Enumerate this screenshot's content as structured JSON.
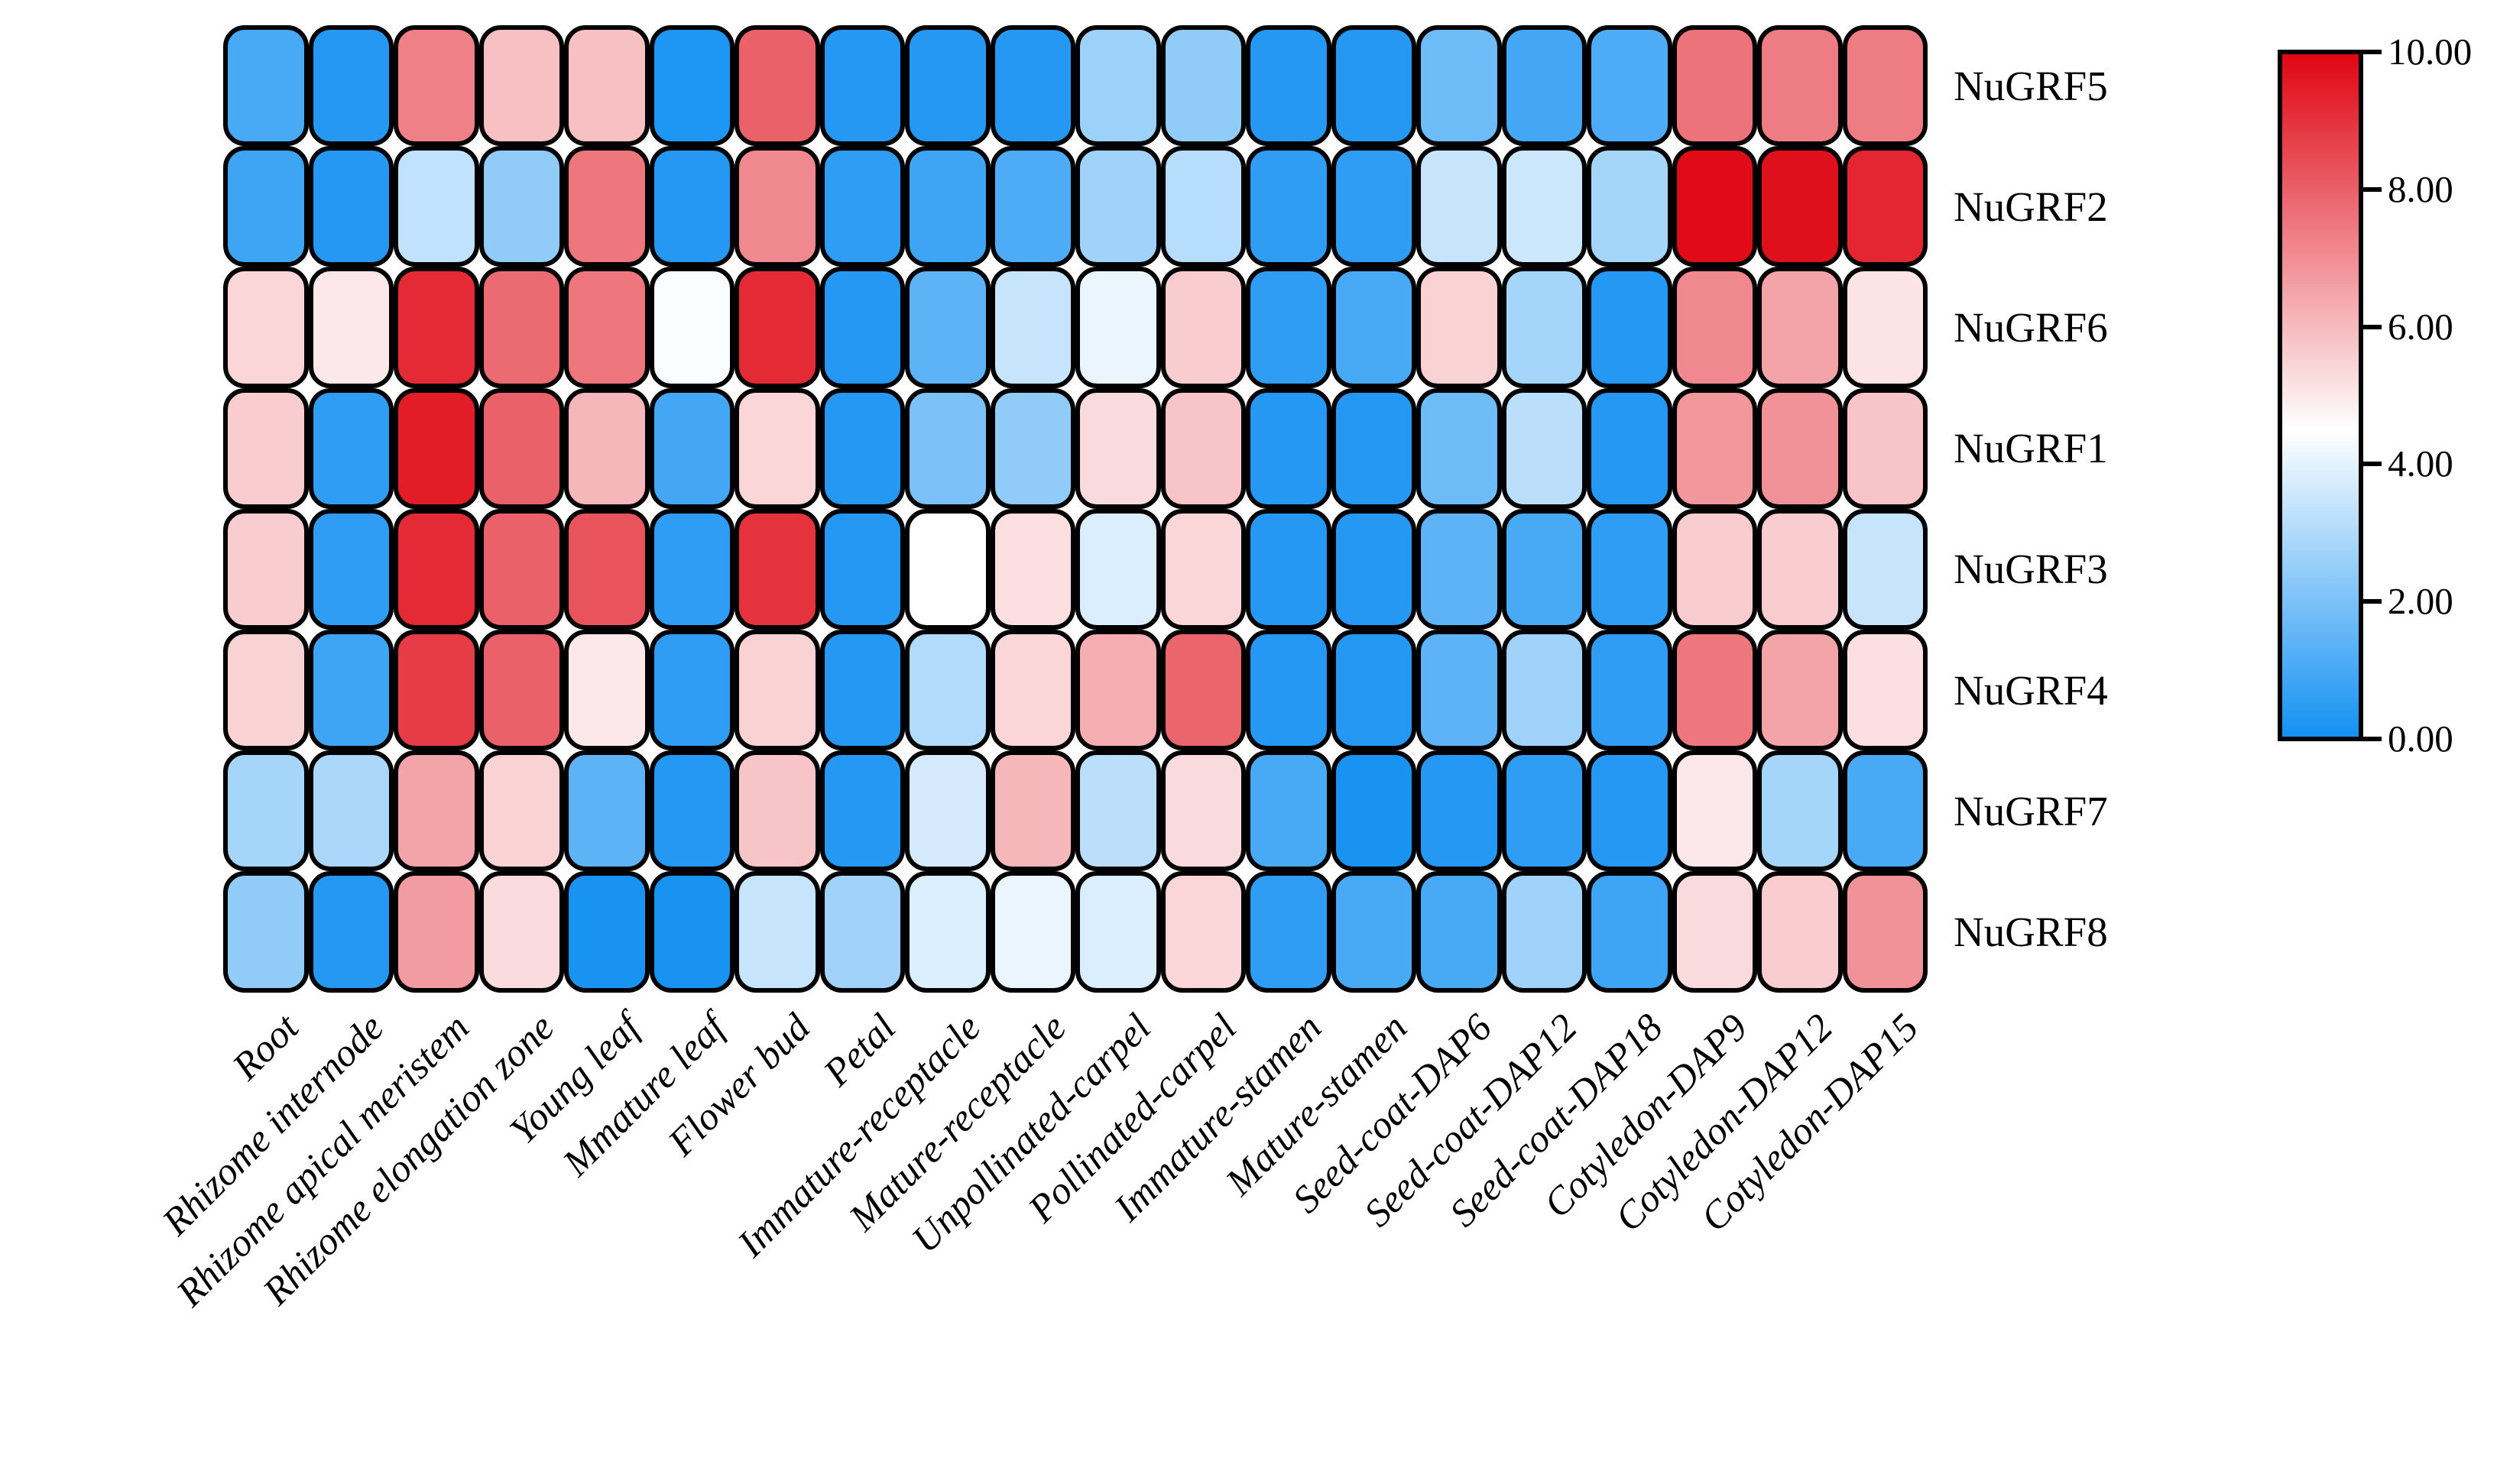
{
  "chart_data": {
    "type": "heatmap",
    "title": "",
    "rows": [
      "NuGRF5",
      "NuGRF2",
      "NuGRF6",
      "NuGRF1",
      "NuGRF3",
      "NuGRF4",
      "NuGRF7",
      "NuGRF8"
    ],
    "columns": [
      "Root",
      "Rhizome internode",
      "Rhizome apical meristem",
      "Rhizome elongation zone",
      "Young leaf",
      "Mmature leaf",
      "Flower bud",
      "Petal",
      "Immature-receptacle",
      "Mature-receptacle",
      "Unpollinated-carpel",
      "Pollinated-carpel",
      "Immature-stamen",
      "Mature-stamen",
      "Seed-coat-DAP6",
      "Seed-coat-DAP12",
      "Seed-coat-DAP18",
      "Cotyledon-DAP9",
      "Cotyledon-DAP12",
      "Cotyledon-DAP15"
    ],
    "values": [
      [
        1.0,
        0.3,
        7.3,
        5.9,
        5.9,
        0.2,
        8.0,
        0.3,
        0.3,
        0.3,
        2.6,
        2.4,
        0.3,
        0.3,
        1.7,
        0.9,
        1.1,
        7.6,
        7.4,
        7.4
      ],
      [
        0.8,
        0.3,
        3.3,
        2.4,
        7.5,
        0.3,
        7.1,
        0.5,
        0.8,
        1.1,
        2.7,
        3.1,
        0.5,
        0.5,
        3.4,
        3.5,
        2.8,
        9.9,
        9.8,
        9.3
      ],
      [
        5.4,
        5.0,
        9.2,
        7.8,
        7.5,
        4.4,
        9.2,
        0.3,
        1.4,
        3.4,
        4.1,
        5.6,
        0.5,
        1.0,
        5.5,
        2.8,
        0.3,
        7.1,
        6.5,
        5.1
      ],
      [
        5.6,
        0.5,
        9.5,
        8.0,
        6.1,
        0.9,
        5.4,
        0.3,
        2.0,
        2.4,
        5.3,
        5.8,
        0.3,
        0.3,
        1.7,
        3.2,
        0.3,
        6.8,
        6.9,
        5.8
      ],
      [
        5.6,
        0.5,
        9.2,
        8.0,
        8.3,
        0.5,
        9.0,
        0.3,
        4.5,
        5.2,
        3.8,
        5.4,
        0.3,
        0.3,
        1.4,
        1.0,
        0.5,
        5.6,
        5.6,
        3.4
      ],
      [
        5.5,
        0.8,
        8.8,
        8.0,
        5.0,
        0.5,
        5.5,
        0.3,
        3.0,
        5.4,
        6.3,
        7.9,
        0.3,
        0.3,
        1.4,
        2.7,
        0.5,
        7.5,
        6.5,
        5.2
      ],
      [
        2.8,
        2.9,
        6.5,
        5.5,
        1.4,
        0.3,
        5.8,
        0.3,
        3.7,
        6.1,
        3.2,
        5.3,
        1.0,
        0.1,
        0.3,
        0.5,
        0.3,
        5.0,
        2.8,
        1.0
      ],
      [
        2.4,
        0.3,
        6.7,
        5.3,
        0.1,
        0.1,
        3.4,
        2.7,
        3.8,
        4.1,
        3.8,
        5.4,
        0.5,
        1.0,
        1.0,
        2.7,
        0.8,
        5.3,
        5.6,
        6.9
      ]
    ],
    "colorbar": {
      "min": 0,
      "max": 10,
      "mid_value": 4.5,
      "ticks": [
        "10.00",
        "8.00",
        "6.00",
        "4.00",
        "2.00",
        "0.00"
      ],
      "tick_values": [
        10,
        8,
        6,
        4,
        2,
        0
      ],
      "color_max": "#df0613",
      "color_mid": "#ffffff",
      "color_min": "#1491f2",
      "position": "right"
    },
    "cell_border_color": "#000000",
    "xlabel": "",
    "ylabel": "",
    "grid": false
  }
}
